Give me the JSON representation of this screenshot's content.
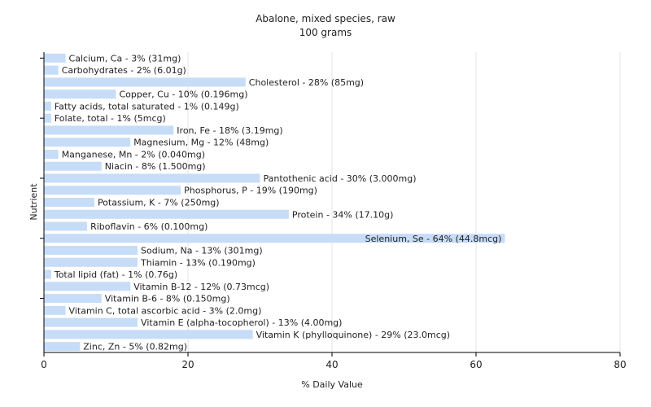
{
  "chart_data": {
    "type": "bar",
    "orientation": "horizontal",
    "title": "Abalone, mixed species, raw",
    "subtitle": "100 grams",
    "xlabel": "% Daily Value",
    "ylabel": "Nutrient",
    "xlim": [
      0,
      80
    ],
    "xticks": [
      0,
      20,
      40,
      60,
      80
    ],
    "grid": true,
    "bar_color": "#c6dcf7",
    "categories": [
      "Calcium, Ca",
      "Carbohydrates",
      "Cholesterol",
      "Copper, Cu",
      "Fatty acids, total saturated",
      "Folate, total",
      "Iron, Fe",
      "Magnesium, Mg",
      "Manganese, Mn",
      "Niacin",
      "Pantothenic acid",
      "Phosphorus, P",
      "Potassium, K",
      "Protein",
      "Riboflavin",
      "Selenium, Se",
      "Sodium, Na",
      "Thiamin",
      "Total lipid (fat)",
      "Vitamin B-12",
      "Vitamin B-6",
      "Vitamin C, total ascorbic acid",
      "Vitamin E (alpha-tocopherol)",
      "Vitamin K (phylloquinone)",
      "Zinc, Zn"
    ],
    "values": [
      3,
      2,
      28,
      10,
      1,
      1,
      18,
      12,
      2,
      8,
      30,
      19,
      7,
      34,
      6,
      64,
      13,
      13,
      1,
      12,
      8,
      3,
      13,
      29,
      5
    ],
    "labels": [
      "Calcium, Ca - 3% (31mg)",
      "Carbohydrates - 2% (6.01g)",
      "Cholesterol - 28% (85mg)",
      "Copper, Cu - 10% (0.196mg)",
      "Fatty acids, total saturated - 1% (0.149g)",
      "Folate, total - 1% (5mcg)",
      "Iron, Fe - 18% (3.19mg)",
      "Magnesium, Mg - 12% (48mg)",
      "Manganese, Mn - 2% (0.040mg)",
      "Niacin - 8% (1.500mg)",
      "Pantothenic acid - 30% (3.000mg)",
      "Phosphorus, P - 19% (190mg)",
      "Potassium, K - 7% (250mg)",
      "Protein - 34% (17.10g)",
      "Riboflavin - 6% (0.100mg)",
      "Selenium, Se - 64% (44.8mcg)",
      "Sodium, Na - 13% (301mg)",
      "Thiamin - 13% (0.190mg)",
      "Total lipid (fat) - 1% (0.76g)",
      "Vitamin B-12 - 12% (0.73mcg)",
      "Vitamin B-6 - 8% (0.150mg)",
      "Vitamin C, total ascorbic acid - 3% (2.0mg)",
      "Vitamin E (alpha-tocopherol) - 13% (4.00mg)",
      "Vitamin K (phylloquinone) - 29% (23.0mcg)",
      "Zinc, Zn - 5% (0.82mg)"
    ]
  }
}
